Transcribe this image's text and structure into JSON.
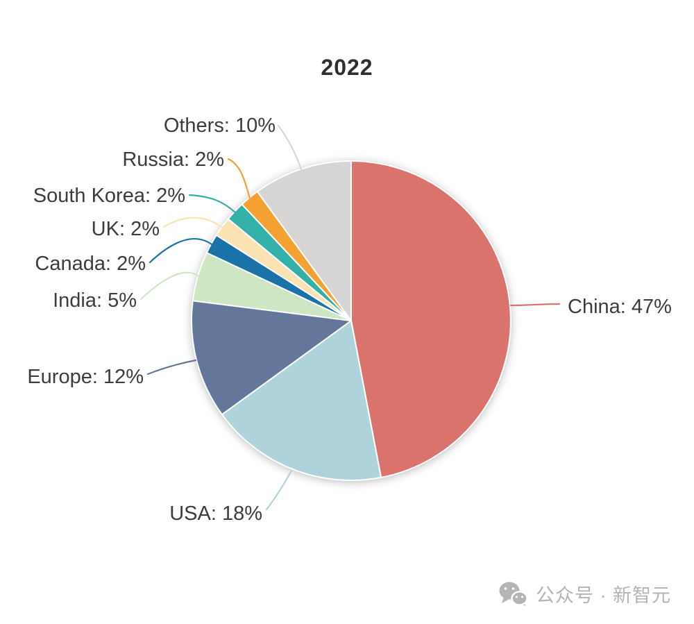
{
  "page": {
    "background": "#ffffff"
  },
  "chart_data": {
    "type": "pie",
    "title": "2022",
    "unit": "%",
    "start_angle": "top",
    "direction": "clockwise",
    "legend_position": "none",
    "label_format": "{label}: {value}%",
    "slices": [
      {
        "label": "China",
        "value": 47,
        "color": "#d9736c"
      },
      {
        "label": "USA",
        "value": 18,
        "color": "#aed3db"
      },
      {
        "label": "Europe",
        "value": 12,
        "color": "#64779b"
      },
      {
        "label": "India",
        "value": 5,
        "color": "#cfe6c4"
      },
      {
        "label": "Canada",
        "value": 2,
        "color": "#1a73a8"
      },
      {
        "label": "UK",
        "value": 2,
        "color": "#fbe2b2"
      },
      {
        "label": "South Korea",
        "value": 2,
        "color": "#33b1a9"
      },
      {
        "label": "Russia",
        "value": 2,
        "color": "#f4a033"
      },
      {
        "label": "Others",
        "value": 10,
        "color": "#d6d5d4"
      }
    ],
    "label_text_color": "#3c3c3c",
    "title_color": "#2f2f2f"
  },
  "watermark": {
    "icon": "wechat-icon",
    "text": "公众号 · 新智元",
    "color": "#b4b4b4"
  }
}
